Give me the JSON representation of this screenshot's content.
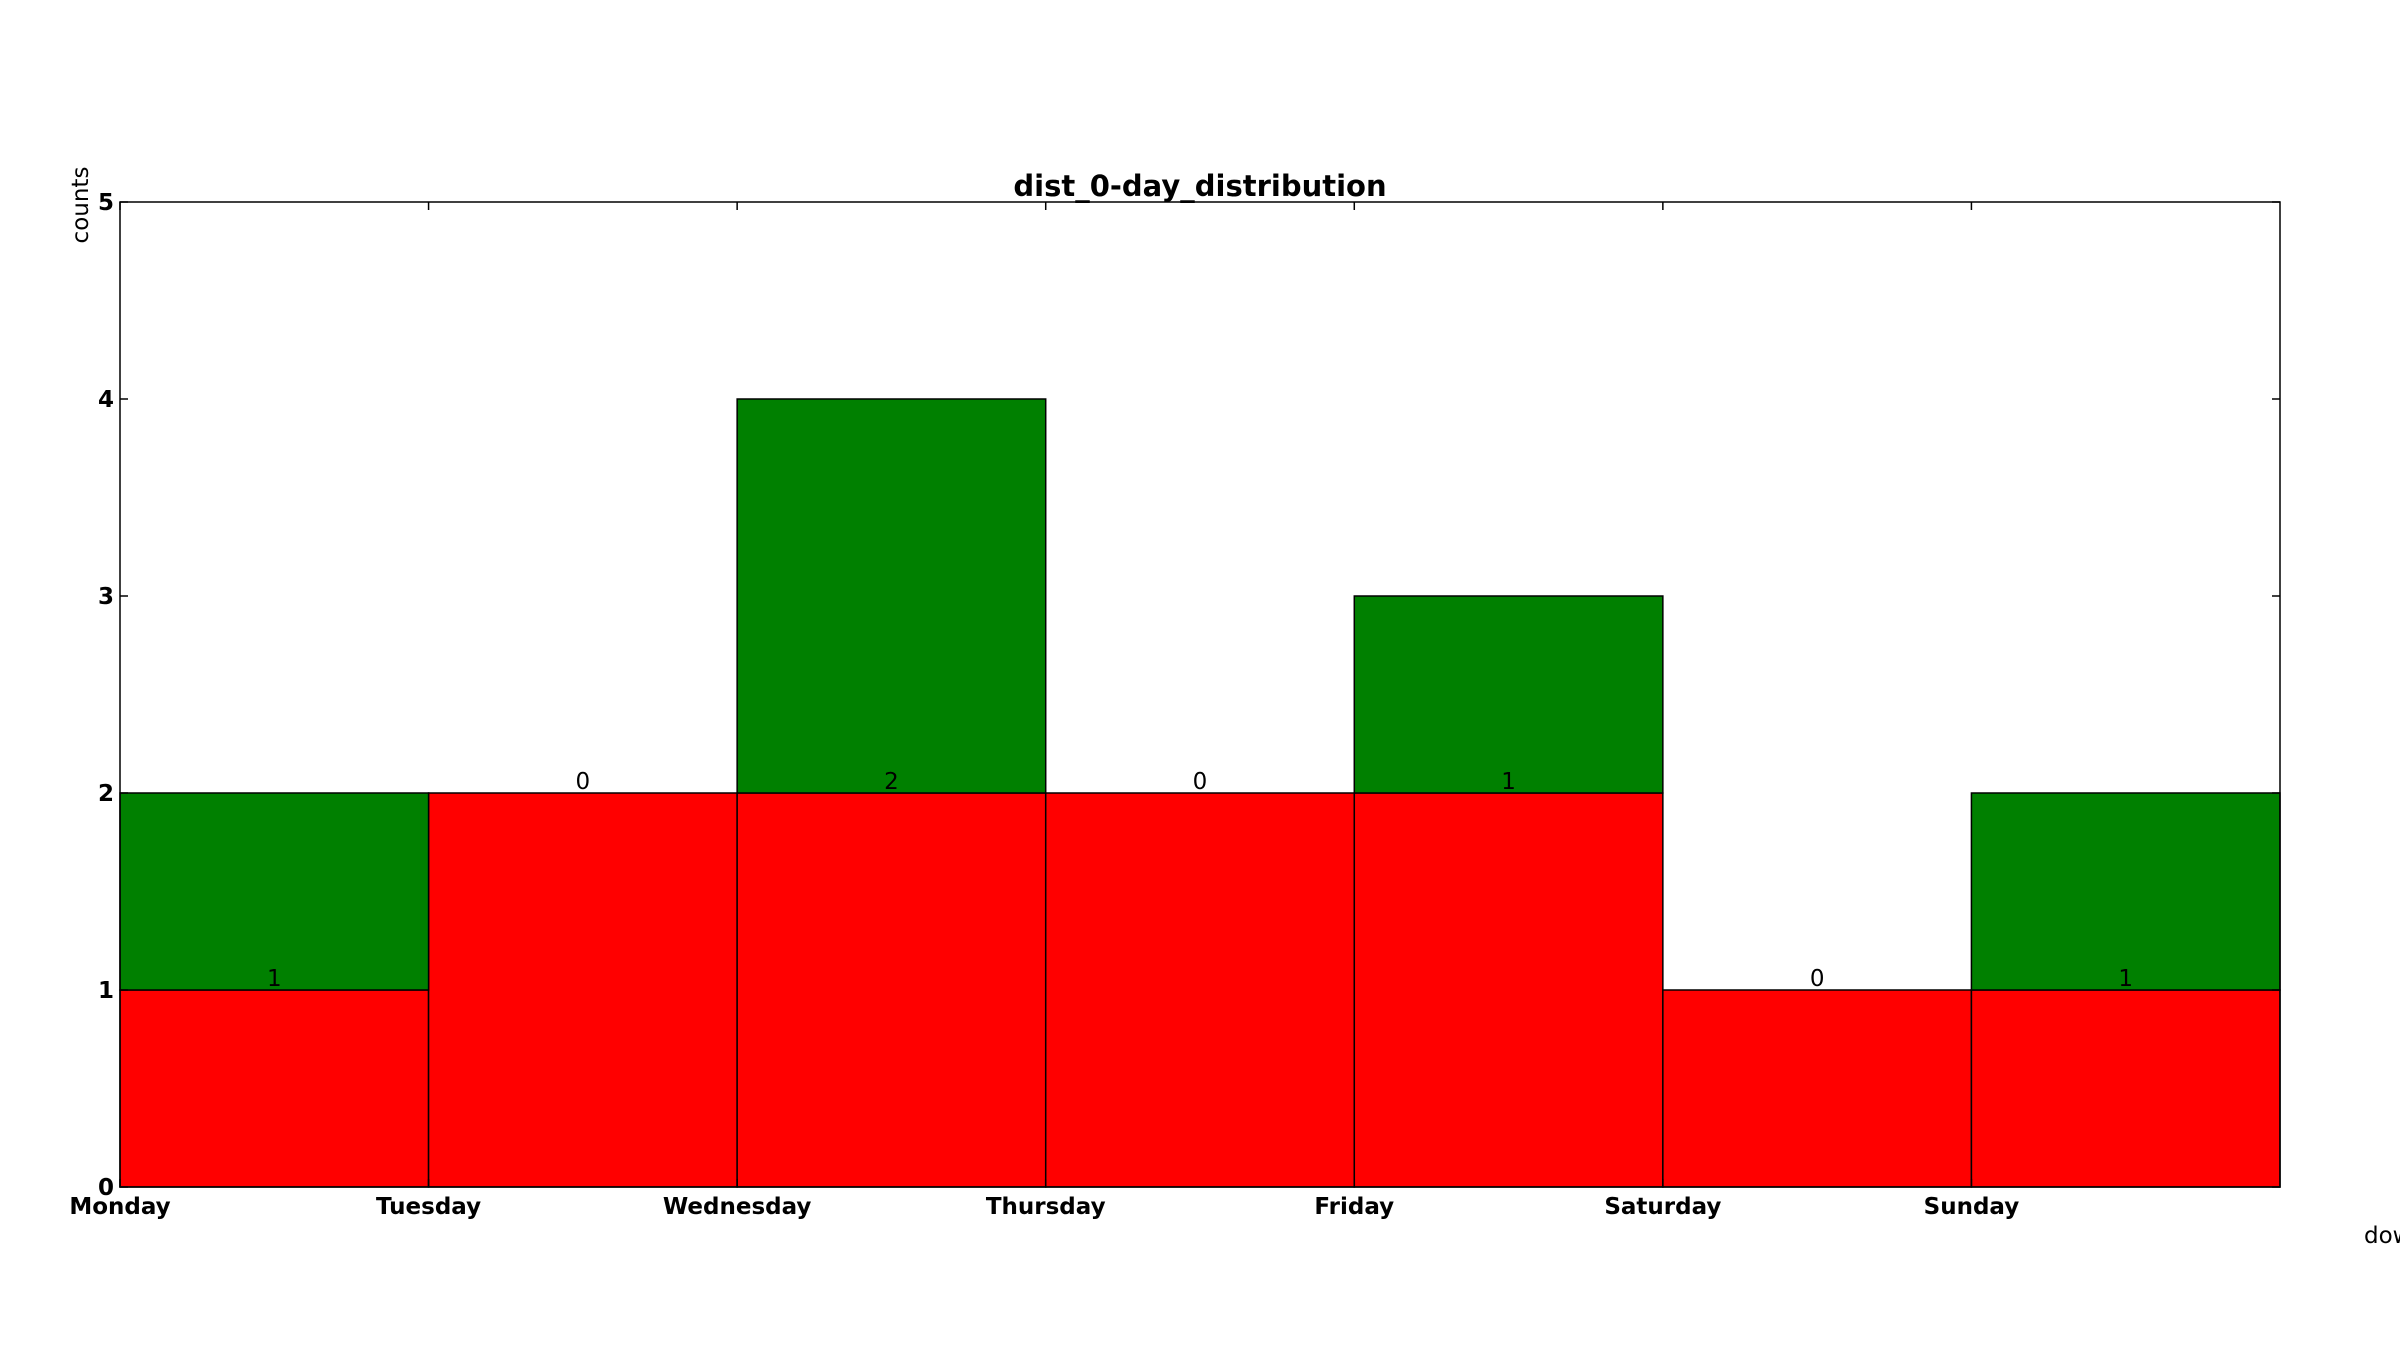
{
  "chart_data": {
    "type": "bar",
    "title": "dist_0-day_distribution",
    "xlabel": "dow",
    "ylabel": "counts",
    "categories": [
      "Monday",
      "Tuesday",
      "Wednesday",
      "Thursday",
      "Friday",
      "Saturday",
      "Sunday"
    ],
    "ylim": [
      0,
      5
    ],
    "yticks": [
      0,
      1,
      2,
      3,
      4,
      5
    ],
    "grid": false,
    "legend": "none",
    "stacked": true,
    "series": [
      {
        "values": [
          1,
          2,
          2,
          2,
          2,
          1,
          1
        ],
        "color": "#ff0000"
      },
      {
        "values": [
          1,
          0,
          2,
          0,
          1,
          0,
          1
        ],
        "color": "#008000"
      }
    ],
    "data_labels": [
      "1",
      "0",
      "2",
      "0",
      "1",
      "0",
      "1"
    ]
  }
}
